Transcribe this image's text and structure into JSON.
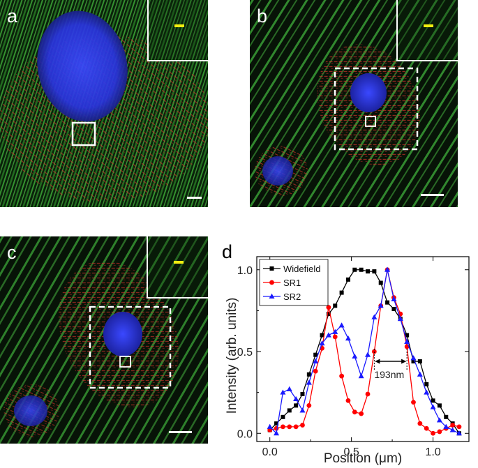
{
  "panels": [
    {
      "label": "a"
    },
    {
      "label": "b"
    },
    {
      "label": "c"
    }
  ],
  "colors": {
    "nucleus": "#2a3cf0",
    "actin": "#3fc23f",
    "mitochondria": "#d8322a",
    "scale_bar_inset": "#f2ee10",
    "background": "#060c06"
  },
  "chart_data": {
    "type": "line",
    "panel_label": "d",
    "title": "",
    "xlabel": "Position (μm)",
    "ylabel": "Intensity (arb. units)",
    "xlim": [
      -0.08,
      1.22
    ],
    "ylim": [
      -0.05,
      1.08
    ],
    "xticks": [
      0.0,
      0.5,
      1.0
    ],
    "xtick_labels": [
      "0.0",
      "0.5",
      "1.0"
    ],
    "yticks": [
      0.0,
      0.5,
      1.0
    ],
    "ytick_labels": [
      "0.0",
      "0.5",
      "1.0"
    ],
    "grid": false,
    "legend": "top-left",
    "annotation": {
      "text": "193nm",
      "x1": 0.64,
      "x2": 0.84,
      "y": 0.44
    },
    "series": [
      {
        "name": "Widefield",
        "color": "#000000",
        "marker": "square",
        "x": [
          0.0,
          0.04,
          0.08,
          0.12,
          0.16,
          0.2,
          0.24,
          0.28,
          0.32,
          0.36,
          0.4,
          0.44,
          0.48,
          0.52,
          0.56,
          0.6,
          0.64,
          0.68,
          0.72,
          0.76,
          0.8,
          0.84,
          0.88,
          0.92,
          0.96,
          1.0,
          1.04,
          1.08,
          1.12,
          1.16
        ],
        "y": [
          0.02,
          0.06,
          0.1,
          0.14,
          0.17,
          0.24,
          0.36,
          0.48,
          0.6,
          0.73,
          0.78,
          0.86,
          0.94,
          1.0,
          1.0,
          0.99,
          0.99,
          0.92,
          0.8,
          0.76,
          0.7,
          0.6,
          0.44,
          0.44,
          0.3,
          0.2,
          0.17,
          0.1,
          0.06,
          0.0
        ]
      },
      {
        "name": "SR1",
        "color": "#ff0000",
        "marker": "circle",
        "x": [
          0.0,
          0.04,
          0.08,
          0.12,
          0.16,
          0.2,
          0.24,
          0.28,
          0.32,
          0.36,
          0.4,
          0.44,
          0.48,
          0.52,
          0.56,
          0.6,
          0.64,
          0.68,
          0.72,
          0.76,
          0.8,
          0.84,
          0.88,
          0.92,
          0.96,
          1.0,
          1.04,
          1.08,
          1.12,
          1.16
        ],
        "y": [
          0.02,
          0.03,
          0.04,
          0.04,
          0.04,
          0.05,
          0.17,
          0.38,
          0.52,
          0.77,
          0.59,
          0.35,
          0.2,
          0.13,
          0.12,
          0.24,
          0.5,
          0.78,
          1.0,
          0.83,
          0.73,
          0.53,
          0.19,
          0.06,
          0.03,
          0.0,
          0.01,
          0.03,
          0.05,
          0.04
        ]
      },
      {
        "name": "SR2",
        "color": "#1a1aff",
        "marker": "triangle",
        "x": [
          0.0,
          0.04,
          0.08,
          0.12,
          0.16,
          0.2,
          0.24,
          0.28,
          0.32,
          0.36,
          0.4,
          0.44,
          0.48,
          0.52,
          0.56,
          0.6,
          0.64,
          0.68,
          0.72,
          0.76,
          0.8,
          0.84,
          0.88,
          0.92,
          0.96,
          1.0,
          1.04,
          1.08,
          1.12,
          1.16
        ],
        "y": [
          0.04,
          0.0,
          0.25,
          0.27,
          0.21,
          0.14,
          0.31,
          0.44,
          0.55,
          0.6,
          0.62,
          0.66,
          0.58,
          0.47,
          0.35,
          0.48,
          0.71,
          0.78,
          1.0,
          0.82,
          0.7,
          0.56,
          0.46,
          0.36,
          0.25,
          0.16,
          0.08,
          0.04,
          0.02,
          0.0
        ]
      }
    ]
  }
}
